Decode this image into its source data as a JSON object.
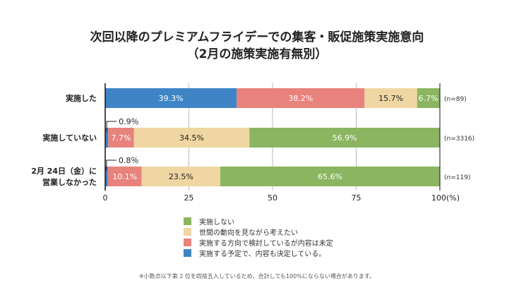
{
  "chart_data": {
    "type": "bar",
    "orientation": "horizontal",
    "stacked": true,
    "title": "次回以降のプレミアムフライデーでの集客・販促施策実施意向",
    "subtitle": "（2月の施策実施有無別）",
    "categories": [
      "実施した",
      "実施していない",
      "2月24日（金）に\n営業しなかった"
    ],
    "category_lines": [
      [
        "実施した"
      ],
      [
        "実施していない"
      ],
      [
        "2月 24日（金）に",
        "営業しなかった"
      ]
    ],
    "sample_sizes": [
      "(n=89)",
      "(n=3316)",
      "(n=119)"
    ],
    "series": [
      {
        "name": "実施する予定で、内容も決定している。",
        "color": "#3f85c6",
        "values": [
          39.3,
          0.9,
          0.8
        ]
      },
      {
        "name": "実施する方向で検討しているが内容は未定",
        "color": "#e8827d",
        "values": [
          38.2,
          7.7,
          10.1
        ]
      },
      {
        "name": "世間の動向を見ながら考えたい",
        "color": "#efd6a2",
        "values": [
          15.7,
          34.5,
          23.5
        ]
      },
      {
        "name": "実施しない",
        "color": "#8bb561",
        "values": [
          6.7,
          56.9,
          65.6
        ]
      }
    ],
    "data_labels": [
      [
        "39.3%",
        "38.2%",
        "15.7%",
        "6.7%"
      ],
      [
        "0.9％",
        "7.7%",
        "34.5%",
        "56.9%"
      ],
      [
        "0.8％",
        "10.1%",
        "23.5%",
        "65.6%"
      ]
    ],
    "label_colors": [
      "#ffffff",
      "#ffffff",
      "#222222",
      "#ffffff"
    ],
    "xlim": [
      0,
      100
    ],
    "xticks": [
      0,
      25,
      50,
      75,
      100
    ],
    "xtick_labels": [
      "0",
      "25",
      "50",
      "75",
      "100(%)"
    ],
    "grid": true,
    "legend_position": "bottom",
    "legend_order": [
      "実施しない",
      "世間の動向を見ながら考えたい",
      "実施する方向で検討しているが内容は未定",
      "実施する予定で、内容も決定している。"
    ],
    "footnote": "※小数点以下第 2 位を四捨五入しているため、合計しても100%にならない場合があります。"
  }
}
